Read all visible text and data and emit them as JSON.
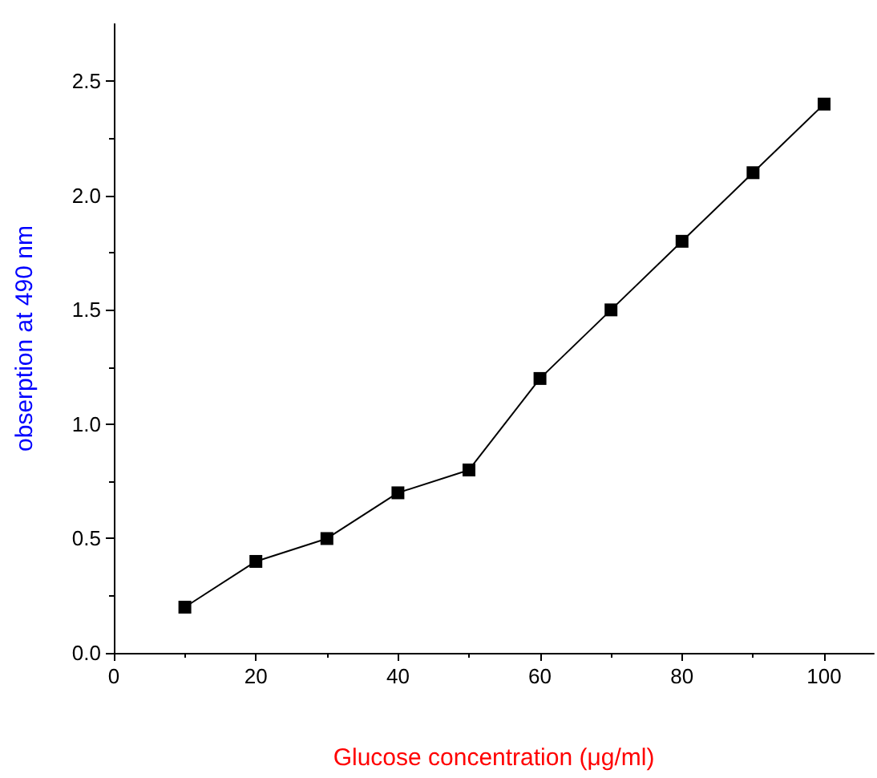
{
  "chart_data": {
    "type": "line",
    "xlabel": "Glucose concentration (μg/ml)",
    "ylabel": "obserption at 490 nm",
    "x": [
      10,
      20,
      30,
      40,
      50,
      60,
      70,
      80,
      90,
      100
    ],
    "values": [
      0.2,
      0.4,
      0.5,
      0.7,
      0.8,
      1.2,
      1.5,
      1.8,
      2.1,
      2.4
    ],
    "color": "#000000",
    "marker": "square",
    "line_style": "solid",
    "xlim": [
      0,
      107
    ],
    "xticks": [
      0,
      20,
      40,
      60,
      80,
      100
    ],
    "ylim": [
      0,
      2.75
    ],
    "yticks": [
      {
        "value": 0,
        "label": "0.0"
      },
      {
        "value": 0.5,
        "label": "0.5"
      },
      {
        "value": 1,
        "label": "1.0"
      },
      {
        "value": 1.5,
        "label": "1.5"
      },
      {
        "value": 2,
        "label": "2.0"
      },
      {
        "value": 2.5,
        "label": "2.5"
      }
    ]
  }
}
